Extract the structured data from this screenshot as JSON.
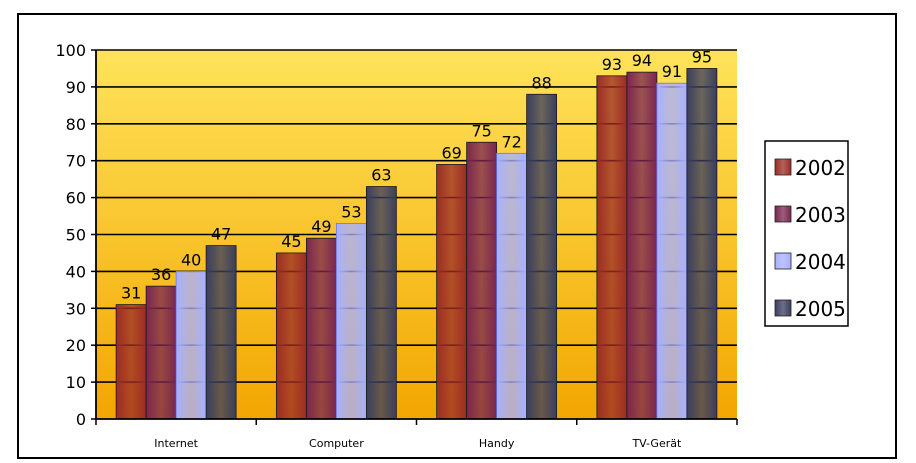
{
  "chart_data": {
    "type": "bar",
    "categories": [
      "Internet",
      "Computer",
      "Handy",
      "TV-Gerät"
    ],
    "series": [
      {
        "name": "2002",
        "values": [
          31,
          45,
          69,
          93
        ],
        "color": "#9b2c26"
      },
      {
        "name": "2003",
        "values": [
          36,
          49,
          75,
          94
        ],
        "color": "#7a2650"
      },
      {
        "name": "2004",
        "values": [
          40,
          53,
          72,
          91
        ],
        "color": "#a8b0ff"
      },
      {
        "name": "2005",
        "values": [
          47,
          63,
          88,
          95
        ],
        "color": "#3a3e5e"
      }
    ],
    "ylim": [
      0,
      100
    ],
    "yticks": [
      "0",
      "10",
      "20",
      "30",
      "40",
      "50",
      "60",
      "70",
      "80",
      "90",
      "100"
    ],
    "grid": true,
    "legend": "right",
    "plot_background": [
      "#ffe35a",
      "#f2a600"
    ]
  }
}
